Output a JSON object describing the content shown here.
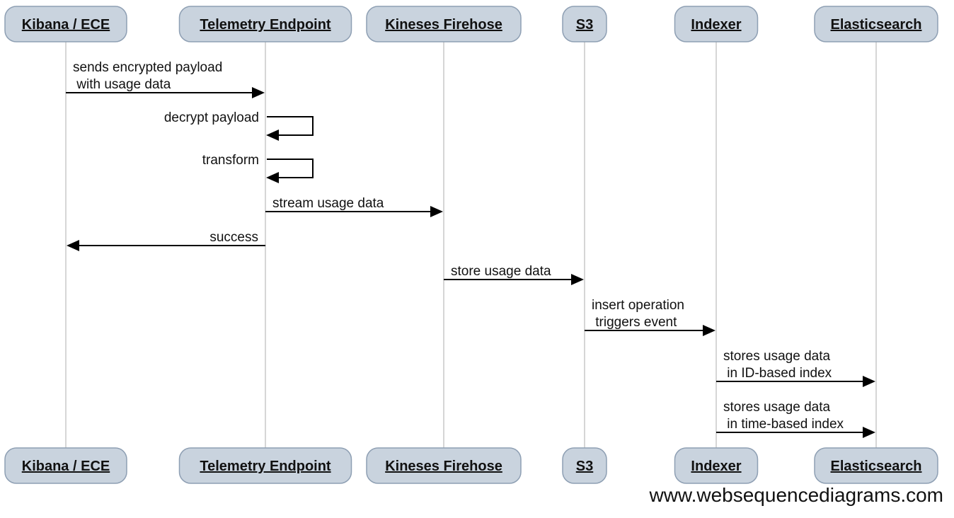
{
  "participants": [
    {
      "id": "kibana",
      "label": "Kibana / ECE"
    },
    {
      "id": "telemetry",
      "label": "Telemetry Endpoint"
    },
    {
      "id": "firehose",
      "label": "Kineses Firehose"
    },
    {
      "id": "s3",
      "label": "S3"
    },
    {
      "id": "indexer",
      "label": "Indexer"
    },
    {
      "id": "es",
      "label": "Elasticsearch"
    }
  ],
  "messages": [
    {
      "from": "kibana",
      "to": "telemetry",
      "lines": [
        "sends encrypted payload",
        " with usage data"
      ]
    },
    {
      "from": "telemetry",
      "to": "telemetry",
      "lines": [
        "decrypt payload"
      ]
    },
    {
      "from": "telemetry",
      "to": "telemetry",
      "lines": [
        "transform"
      ]
    },
    {
      "from": "telemetry",
      "to": "firehose",
      "lines": [
        "stream usage data"
      ]
    },
    {
      "from": "telemetry",
      "to": "kibana",
      "lines": [
        "success"
      ]
    },
    {
      "from": "firehose",
      "to": "s3",
      "lines": [
        "store usage data"
      ]
    },
    {
      "from": "s3",
      "to": "indexer",
      "lines": [
        "insert operation",
        " triggers event"
      ]
    },
    {
      "from": "indexer",
      "to": "es",
      "lines": [
        "stores usage data",
        " in ID-based index"
      ]
    },
    {
      "from": "indexer",
      "to": "es",
      "lines": [
        "stores usage data",
        " in time-based index"
      ]
    }
  ],
  "watermark": "www.websequencediagrams.com",
  "colors": {
    "box_fill": "#c9d3de",
    "box_stroke": "#8e9fb3",
    "lifeline": "#c8c8c8",
    "arrow": "#000000",
    "text": "#111111"
  }
}
